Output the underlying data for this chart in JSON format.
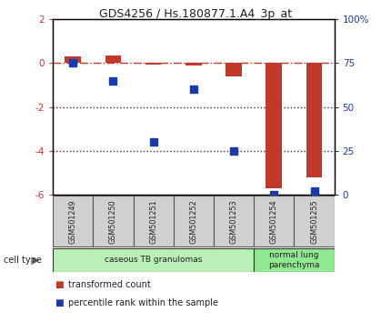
{
  "title": "GDS4256 / Hs.180877.1.A4_3p_at",
  "samples": [
    "GSM501249",
    "GSM501250",
    "GSM501251",
    "GSM501252",
    "GSM501253",
    "GSM501254",
    "GSM501255"
  ],
  "transformed_count": [
    0.3,
    0.35,
    -0.05,
    -0.1,
    -0.6,
    -5.7,
    -5.2
  ],
  "percentile_rank": [
    75,
    65,
    30,
    60,
    25,
    0,
    2
  ],
  "ylim_left": [
    -6,
    2
  ],
  "ylim_right": [
    0,
    100
  ],
  "yticks_left": [
    -6,
    -4,
    -2,
    0,
    2
  ],
  "yticks_right": [
    0,
    25,
    50,
    75,
    100
  ],
  "ytick_labels_right": [
    "0",
    "25",
    "50",
    "75",
    "100%"
  ],
  "bar_color": "#C0392B",
  "dot_color": "#1A3AAA",
  "hline_color": "#C0392B",
  "dotted_line_color": "#333333",
  "cell_type_label": "cell type",
  "groups": [
    {
      "label": "caseous TB granulomas",
      "samples": [
        0,
        1,
        2,
        3,
        4
      ],
      "color": "#b8f0b8"
    },
    {
      "label": "normal lung\nparenchyma",
      "samples": [
        5,
        6
      ],
      "color": "#90e890"
    }
  ],
  "legend_items": [
    {
      "color": "#C0392B",
      "label": "transformed count"
    },
    {
      "color": "#1A3AAA",
      "label": "percentile rank within the sample"
    }
  ],
  "bg_color": "#ffffff",
  "spine_color": "#000000",
  "tick_label_color_left": "#C0392B",
  "tick_label_color_right": "#1A3AAA",
  "sample_box_color": "#d0d0d0",
  "bar_width": 0.4
}
